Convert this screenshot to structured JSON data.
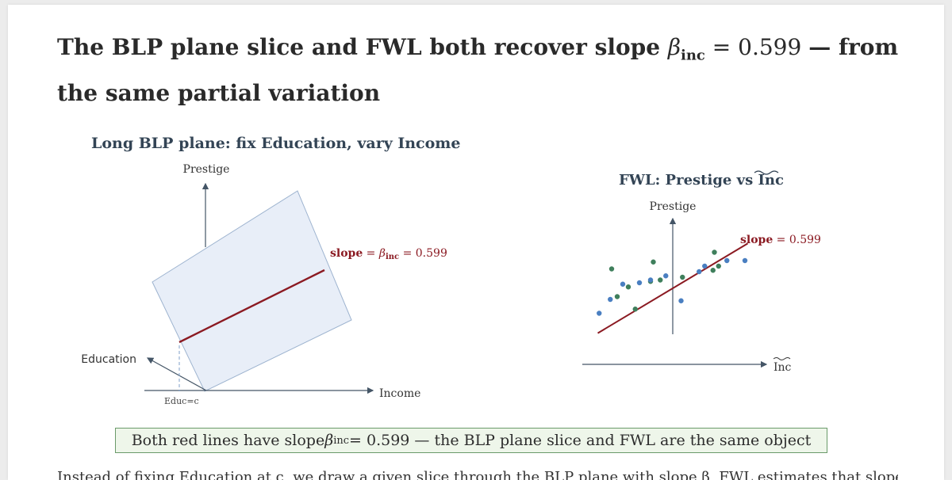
{
  "title": {
    "text_a": "The BLP plane slice and FWL both recover slope ",
    "beta": "β",
    "beta_sub": "inc",
    "text_b": " = 0.599 — from the same partial variation"
  },
  "left_panel": {
    "title": "Long BLP plane: fix Education, vary Income",
    "axis_prestige": "Prestige",
    "axis_education": "Education",
    "axis_income": "Income",
    "educ_marker": "Educ=c",
    "slope_label_word": "slope",
    "slope_label_eq": " = ",
    "slope_label_beta": "β",
    "slope_label_sub": "inc",
    "slope_label_value": " = 0.599"
  },
  "right_panel": {
    "title": "FWL: Prestige vs Inc",
    "axis_prestige": "Prestige",
    "axis_inc": "Inc",
    "slope_label_word": "slope",
    "slope_label_value": " = 0.599"
  },
  "callout": {
    "text_a": "Both red lines have slope ",
    "beta": "β",
    "beta_sub": "inc",
    "text_b": " = 0.599 — the BLP plane slice and FWL are the same object"
  },
  "footer_cut": "Instead of fixing Education at c, we draw a given slice through the BLP plane with slope β, FWL estimates that slope",
  "colors": {
    "red_line": "#8b1a22",
    "plane_fill": "#e8eef8",
    "plane_stroke": "#9db3cf",
    "point_green": "#3f7f5c",
    "point_blue": "#4a7fc1",
    "axis": "#445566"
  },
  "chart_data": {
    "type": "scatter",
    "title": "FWL: Prestige vs Inc",
    "xlabel": "Inc",
    "ylabel": "Prestige",
    "xlim": [
      -6,
      6
    ],
    "ylim": [
      -4,
      4
    ],
    "fit_line": {
      "slope": 0.599,
      "x_range": [
        -5.4,
        5.4
      ]
    },
    "series": [
      {
        "points": [
          [
            -4.4,
            1.4
          ],
          [
            -1.4,
            1.9
          ],
          [
            -0.9,
            0.6
          ],
          [
            -2.7,
            -1.5
          ],
          [
            -3.2,
            0.1
          ],
          [
            -4.0,
            -0.6
          ],
          [
            2.9,
            1.3
          ],
          [
            3.3,
            1.6
          ],
          [
            -1.6,
            0.5
          ],
          [
            0.7,
            0.8
          ],
          [
            3.0,
            2.6
          ]
        ]
      },
      {
        "points": [
          [
            -5.3,
            -1.8
          ],
          [
            -4.5,
            -0.8
          ],
          [
            -3.6,
            0.3
          ],
          [
            -2.4,
            0.4
          ],
          [
            -1.6,
            0.6
          ],
          [
            -0.5,
            0.9
          ],
          [
            0.6,
            -0.9
          ],
          [
            1.9,
            1.2
          ],
          [
            2.3,
            1.6
          ],
          [
            3.9,
            2.0
          ],
          [
            5.2,
            2.0
          ]
        ]
      }
    ]
  }
}
